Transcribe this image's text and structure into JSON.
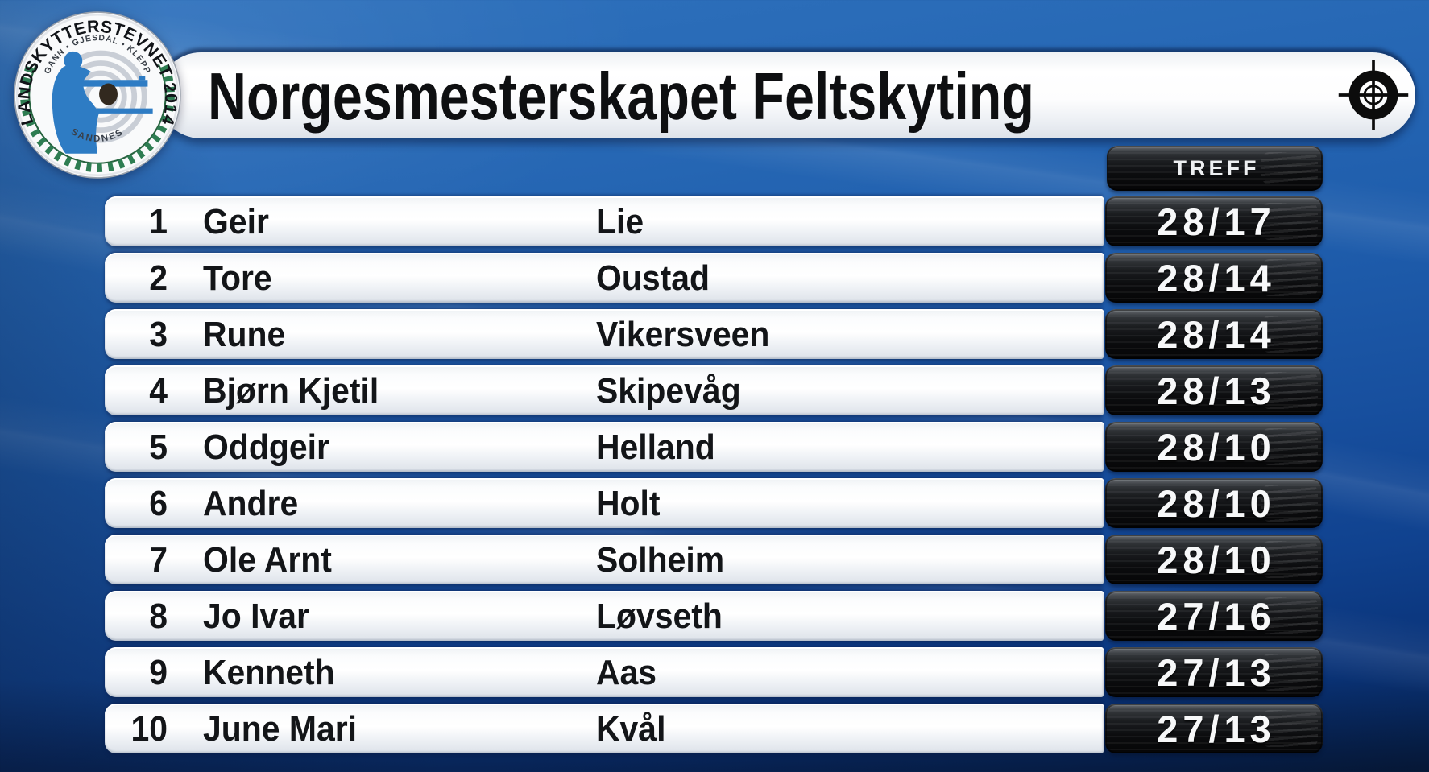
{
  "header": {
    "title": "Norgesmesterskapet Feltskyting",
    "crosshair_icon": "scope-reticle",
    "logo": {
      "arc_top": "LANDSKYTTERSTEVNET 2014",
      "arc_inner": "GANN • GJESDAL • KLEPP",
      "arc_bottom": "SANDNES"
    }
  },
  "table": {
    "score_header": "TREFF",
    "columns": [
      "rank",
      "first_name",
      "last_name",
      "score"
    ],
    "rows": [
      {
        "rank": "1",
        "first": "Geir",
        "last": "Lie",
        "score": "28/17"
      },
      {
        "rank": "2",
        "first": "Tore",
        "last": "Oustad",
        "score": "28/14"
      },
      {
        "rank": "3",
        "first": "Rune",
        "last": "Vikersveen",
        "score": "28/14"
      },
      {
        "rank": "4",
        "first": "Bjørn Kjetil",
        "last": "Skipevåg",
        "score": "28/13"
      },
      {
        "rank": "5",
        "first": "Oddgeir",
        "last": "Helland",
        "score": "28/10"
      },
      {
        "rank": "6",
        "first": "Andre",
        "last": "Holt",
        "score": "28/10"
      },
      {
        "rank": "7",
        "first": "Ole Arnt",
        "last": "Solheim",
        "score": "28/10"
      },
      {
        "rank": "8",
        "first": "Jo Ivar",
        "last": "Løvseth",
        "score": "27/16"
      },
      {
        "rank": "9",
        "first": "Kenneth",
        "last": "Aas",
        "score": "27/13"
      },
      {
        "rank": "10",
        "first": "June Mari",
        "last": "Kvål",
        "score": "27/13"
      }
    ]
  },
  "colors": {
    "background_blue": "#1E5CAB",
    "bar_white": "#FFFFFF",
    "badge_dark": "#141619",
    "badge_text": "#F6F7F8",
    "row_text": "#131518",
    "logo_blue": "#2E7CC4",
    "wreath_green": "#2E7D52"
  }
}
